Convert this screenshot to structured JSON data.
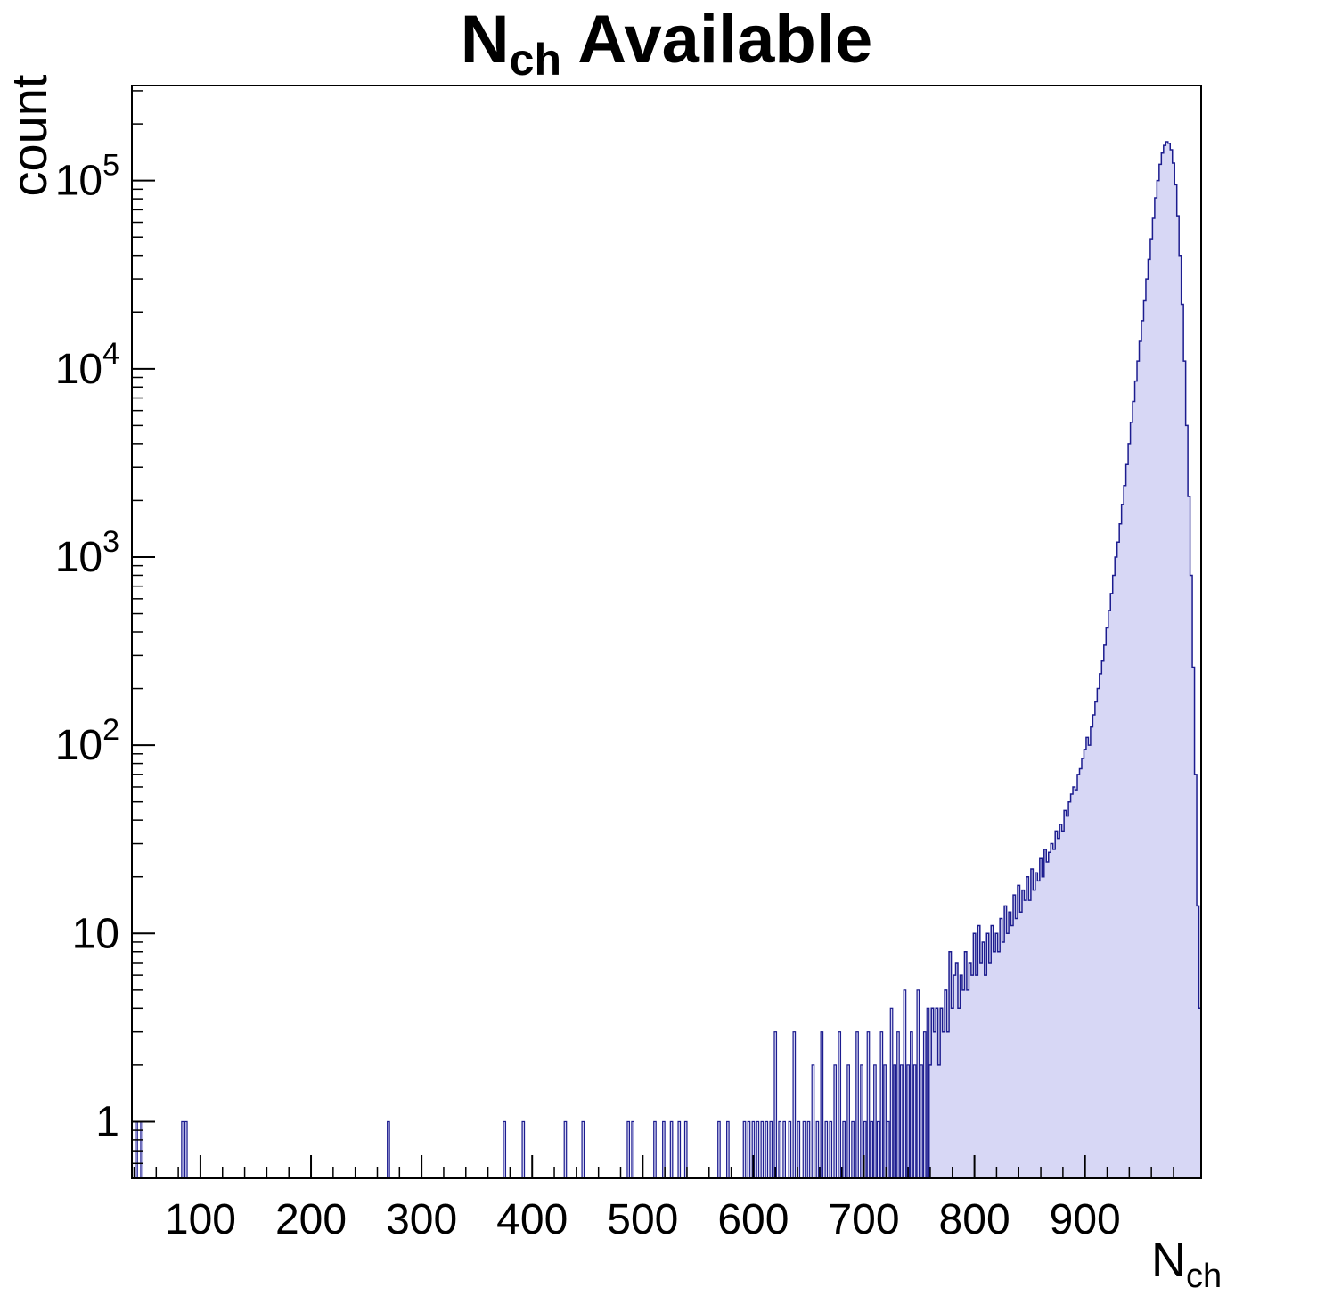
{
  "title": {
    "main": "N",
    "sub": "ch",
    "rest": " Available"
  },
  "axes": {
    "y_label": "count",
    "x_label_main": "N",
    "x_label_sub": "ch",
    "x_ticks": [
      100,
      200,
      300,
      400,
      500,
      600,
      700,
      800,
      900
    ],
    "y_ticks": [
      {
        "base": "1",
        "exp": "",
        "value": 1
      },
      {
        "base": "10",
        "exp": "",
        "value": 10
      },
      {
        "base": "10",
        "exp": "2",
        "value": 100
      },
      {
        "base": "10",
        "exp": "3",
        "value": 1000
      },
      {
        "base": "10",
        "exp": "4",
        "value": 10000
      },
      {
        "base": "10",
        "exp": "5",
        "value": 100000
      }
    ]
  },
  "chart_data": {
    "type": "bar",
    "title": "N_ch Available",
    "xlabel": "N_ch",
    "ylabel": "count",
    "y_scale": "log",
    "x_range": [
      38,
      1005
    ],
    "y_range": [
      0.5,
      320000
    ],
    "bin_width": 2,
    "grid": false,
    "legend": "none",
    "colors": {
      "fill": "#d7d7f5",
      "stroke": "#1c1c8f",
      "axis": "#000000"
    },
    "sparse_bars": [
      [
        42,
        1
      ],
      [
        47,
        1
      ],
      [
        84,
        1
      ],
      [
        87,
        1
      ],
      [
        270,
        1
      ],
      [
        375,
        1
      ],
      [
        392,
        1
      ],
      [
        430,
        1
      ],
      [
        446,
        1
      ],
      [
        487,
        1
      ],
      [
        491,
        1
      ],
      [
        511,
        1
      ],
      [
        519,
        1
      ],
      [
        526,
        1
      ],
      [
        533,
        1
      ],
      [
        539,
        1
      ],
      [
        569,
        1
      ],
      [
        577,
        1
      ],
      [
        592,
        1
      ],
      [
        596,
        1
      ],
      [
        600,
        1
      ],
      [
        604,
        1
      ],
      [
        608,
        1
      ],
      [
        612,
        1
      ],
      [
        616,
        1
      ],
      [
        620,
        3
      ],
      [
        624,
        1
      ],
      [
        628,
        1
      ],
      [
        633,
        1
      ],
      [
        637,
        3
      ],
      [
        641,
        1
      ],
      [
        646,
        1
      ],
      [
        650,
        1
      ],
      [
        654,
        2
      ],
      [
        658,
        1
      ],
      [
        662,
        3
      ],
      [
        666,
        1
      ],
      [
        670,
        1
      ],
      [
        674,
        2
      ],
      [
        678,
        3
      ],
      [
        682,
        1
      ],
      [
        686,
        2
      ],
      [
        690,
        1
      ],
      [
        694,
        3
      ],
      [
        698,
        2
      ],
      [
        701,
        1
      ],
      [
        704,
        3
      ],
      [
        707,
        1
      ],
      [
        710,
        2
      ],
      [
        713,
        1
      ],
      [
        716,
        3
      ],
      [
        719,
        2
      ],
      [
        722,
        1
      ],
      [
        725,
        4
      ],
      [
        728,
        2
      ],
      [
        731,
        3
      ],
      [
        734,
        2
      ],
      [
        737,
        5
      ],
      [
        740,
        2
      ],
      [
        743,
        3
      ],
      [
        746,
        2
      ],
      [
        749,
        5
      ],
      [
        752,
        2
      ],
      [
        755,
        3
      ],
      [
        758,
        4
      ]
    ],
    "profile": [
      [
        760,
        2
      ],
      [
        762,
        4
      ],
      [
        764,
        3
      ],
      [
        766,
        4
      ],
      [
        768,
        2
      ],
      [
        770,
        4
      ],
      [
        772,
        3
      ],
      [
        774,
        5
      ],
      [
        776,
        3
      ],
      [
        778,
        8
      ],
      [
        780,
        4
      ],
      [
        782,
        6
      ],
      [
        784,
        7
      ],
      [
        786,
        4
      ],
      [
        788,
        6
      ],
      [
        790,
        5
      ],
      [
        792,
        8
      ],
      [
        794,
        5
      ],
      [
        796,
        7
      ],
      [
        798,
        6
      ],
      [
        800,
        10
      ],
      [
        802,
        6
      ],
      [
        804,
        11
      ],
      [
        806,
        7
      ],
      [
        808,
        9
      ],
      [
        810,
        6
      ],
      [
        812,
        10
      ],
      [
        814,
        7
      ],
      [
        816,
        11
      ],
      [
        818,
        8
      ],
      [
        820,
        10
      ],
      [
        822,
        8
      ],
      [
        824,
        12
      ],
      [
        826,
        9
      ],
      [
        828,
        14
      ],
      [
        830,
        10
      ],
      [
        832,
        13
      ],
      [
        834,
        11
      ],
      [
        836,
        16
      ],
      [
        838,
        12
      ],
      [
        840,
        18
      ],
      [
        842,
        13
      ],
      [
        844,
        17
      ],
      [
        846,
        15
      ],
      [
        848,
        20
      ],
      [
        850,
        15
      ],
      [
        852,
        22
      ],
      [
        854,
        17
      ],
      [
        856,
        21
      ],
      [
        858,
        19
      ],
      [
        860,
        25
      ],
      [
        862,
        20
      ],
      [
        864,
        28
      ],
      [
        866,
        24
      ],
      [
        868,
        27
      ],
      [
        870,
        30
      ],
      [
        872,
        28
      ],
      [
        874,
        35
      ],
      [
        876,
        32
      ],
      [
        878,
        38
      ],
      [
        880,
        35
      ],
      [
        882,
        45
      ],
      [
        884,
        42
      ],
      [
        886,
        50
      ],
      [
        888,
        55
      ],
      [
        890,
        60
      ],
      [
        892,
        58
      ],
      [
        894,
        70
      ],
      [
        896,
        75
      ],
      [
        898,
        85
      ],
      [
        900,
        95
      ],
      [
        902,
        110
      ],
      [
        904,
        100
      ],
      [
        906,
        125
      ],
      [
        908,
        145
      ],
      [
        910,
        170
      ],
      [
        912,
        200
      ],
      [
        914,
        240
      ],
      [
        916,
        280
      ],
      [
        918,
        340
      ],
      [
        920,
        420
      ],
      [
        922,
        520
      ],
      [
        924,
        640
      ],
      [
        926,
        800
      ],
      [
        928,
        1000
      ],
      [
        930,
        1200
      ],
      [
        932,
        1500
      ],
      [
        934,
        1900
      ],
      [
        936,
        2400
      ],
      [
        938,
        3100
      ],
      [
        940,
        4000
      ],
      [
        942,
        5200
      ],
      [
        944,
        6700
      ],
      [
        946,
        8600
      ],
      [
        948,
        11000
      ],
      [
        950,
        14000
      ],
      [
        952,
        18000
      ],
      [
        954,
        23000
      ],
      [
        956,
        30000
      ],
      [
        958,
        38000
      ],
      [
        960,
        49000
      ],
      [
        962,
        63000
      ],
      [
        964,
        81000
      ],
      [
        966,
        100000
      ],
      [
        968,
        122000
      ],
      [
        970,
        140000
      ],
      [
        972,
        154000
      ],
      [
        974,
        161000
      ],
      [
        976,
        158000
      ],
      [
        978,
        146000
      ],
      [
        980,
        124000
      ],
      [
        982,
        95000
      ],
      [
        984,
        65000
      ],
      [
        986,
        40000
      ],
      [
        988,
        22000
      ],
      [
        990,
        11000
      ],
      [
        992,
        5000
      ],
      [
        994,
        2100
      ],
      [
        996,
        800
      ],
      [
        998,
        260
      ],
      [
        1000,
        70
      ],
      [
        1002,
        14
      ],
      [
        1004,
        4
      ]
    ]
  }
}
